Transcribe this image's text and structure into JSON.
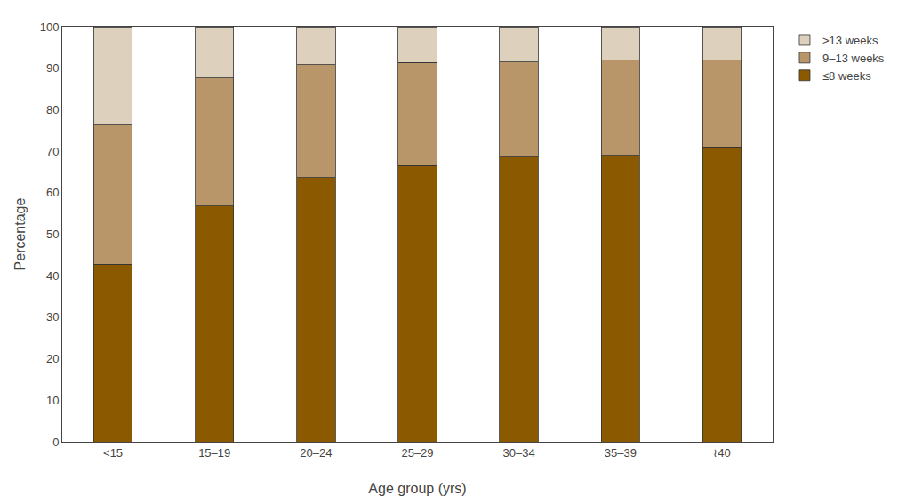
{
  "chart_data": {
    "type": "bar",
    "stacked": true,
    "xlabel": "Age group (yrs)",
    "ylabel": "Percentage",
    "categories": [
      "<15",
      "15–19",
      "20–24",
      "25–29",
      "30–34",
      "35–39",
      "≀40"
    ],
    "series": [
      {
        "name": "≤8 weeks",
        "color": "#8B5A00",
        "values": [
          42.8,
          56.8,
          63.7,
          66.5,
          68.6,
          69.0,
          71.0
        ]
      },
      {
        "name": "9–13 weeks",
        "color": "#B8966A",
        "values": [
          33.5,
          30.8,
          27.2,
          24.9,
          22.9,
          22.9,
          20.9
        ]
      },
      {
        "name": ">13 weeks",
        "color": "#DDD0BC",
        "values": [
          23.7,
          12.4,
          9.1,
          8.6,
          8.5,
          8.1,
          8.1
        ]
      }
    ],
    "ylim": [
      0,
      100
    ],
    "yticks": [
      0,
      10,
      20,
      30,
      40,
      50,
      60,
      70,
      80,
      90,
      100
    ],
    "grid": false,
    "legend": "upper right"
  }
}
